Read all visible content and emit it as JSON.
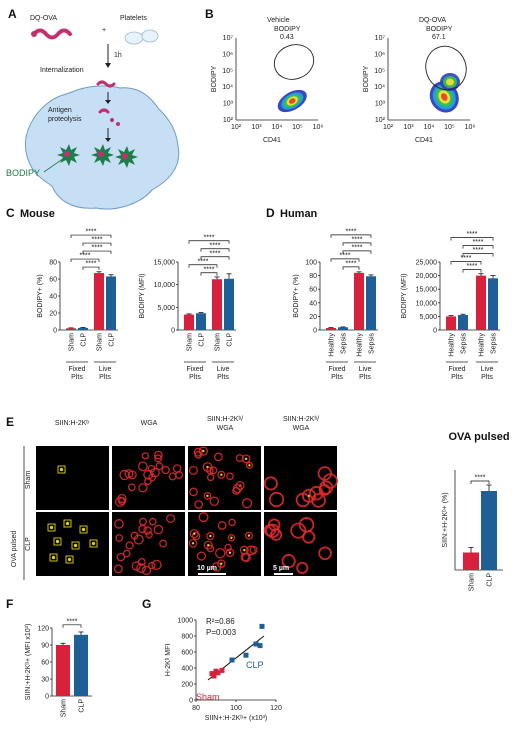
{
  "colors": {
    "red": "#d7213d",
    "blue": "#1f5f97",
    "green": "#1c7f4a",
    "pink": "#c2306f",
    "cell_fill": "#c7dff4",
    "confocal_red": "#e02a2a",
    "square_yellow": "#e8d60a"
  },
  "panel_a": {
    "letter": "A",
    "dqova": "DQ-OVA",
    "platelets": "Platelets",
    "plus": "+",
    "time": "1h",
    "internalization": "Internalization",
    "proteolysis_1": "Antigen",
    "proteolysis_2": "proteolysis",
    "bodipy": "BODIPY"
  },
  "panel_b": {
    "letter": "B",
    "plots": [
      {
        "title": "Vehicle",
        "gate_label": "BODIPY",
        "gate_value": "0.43",
        "ylabel": "BODIPY",
        "xlabel": "CD41"
      },
      {
        "title": "DQ-OVA",
        "gate_label": "BODIPY",
        "gate_value": "67.1",
        "ylabel": "BODIPY",
        "xlabel": "CD41"
      }
    ],
    "axis_ticks": [
      "10²",
      "10³",
      "10⁴",
      "10⁵",
      "10⁶",
      "10⁷"
    ]
  },
  "panel_c": {
    "letter": "C",
    "title": "Mouse"
  },
  "panel_d": {
    "letter": "D",
    "title": "Human"
  },
  "panel_e": {
    "letter": "E",
    "col_headers": [
      [
        "SIIN:H-2Kᵇ"
      ],
      [
        "WGA"
      ],
      [
        "SIIN:H-2Kᵇ/",
        "WGA"
      ],
      [
        "SIIN:H-2Kᵇ/",
        "WGA"
      ]
    ],
    "side_label": "OVA pulsed",
    "row_labels": [
      "Sham",
      "CLP"
    ],
    "scale_10": "10 µm",
    "scale_5": "5 µm"
  },
  "panel_f": {
    "letter": "F"
  },
  "panel_g": {
    "letter": "G",
    "r2": "R²=0.86",
    "p": "P=0.003",
    "clp_label": "CLP",
    "sham_label": "Sham"
  },
  "chart_data": [
    {
      "id": "C1",
      "type": "bar",
      "panel": "C",
      "ylabel": "BODIPY+ (%)",
      "ylim": [
        0,
        80
      ],
      "yticks": [
        "0",
        "20",
        "40",
        "60",
        "80"
      ],
      "categories": [
        "Sham",
        "CLP",
        "Sham",
        "CLP"
      ],
      "groups": [
        "Fixed Plts",
        "Live Plts"
      ],
      "values": [
        2,
        2.5,
        67,
        63
      ],
      "errors": [
        0.5,
        0.5,
        1.5,
        2.0
      ],
      "colors": [
        "red",
        "blue",
        "red",
        "blue"
      ],
      "significance": [
        "****",
        "****",
        "****",
        "****",
        "****"
      ]
    },
    {
      "id": "C2",
      "type": "bar",
      "panel": "C",
      "ylabel": "BODIPY (MFI)",
      "ylim": [
        0,
        15000
      ],
      "yticks": [
        "0",
        "5,000",
        "10,000",
        "15,000"
      ],
      "categories": [
        "Sham",
        "CLP",
        "Sham",
        "CLP"
      ],
      "groups": [
        "Fixed Plts",
        "Live Plts"
      ],
      "values": [
        3400,
        3700,
        11200,
        11300
      ],
      "errors": [
        150,
        150,
        500,
        1100
      ],
      "colors": [
        "red",
        "blue",
        "red",
        "blue"
      ],
      "significance": [
        "****",
        "****",
        "****",
        "****",
        "****"
      ]
    },
    {
      "id": "D1",
      "type": "bar",
      "panel": "D",
      "ylabel": "BODIPY+ (%)",
      "ylim": [
        0,
        100
      ],
      "yticks": [
        "0",
        "20",
        "40",
        "60",
        "80",
        "100"
      ],
      "categories": [
        "Healthy",
        "Sepsis",
        "Healthy",
        "Sepsis"
      ],
      "groups": [
        "Fixed Plts",
        "Live Plts"
      ],
      "values": [
        3,
        4,
        84,
        79
      ],
      "errors": [
        0.5,
        0.5,
        1.5,
        2.0
      ],
      "colors": [
        "red",
        "blue",
        "red",
        "blue"
      ],
      "significance": [
        "****",
        "****",
        "****",
        "****",
        "****"
      ]
    },
    {
      "id": "D2",
      "type": "bar",
      "panel": "D",
      "ylabel": "BODIPY (MFI)",
      "ylim": [
        0,
        25000
      ],
      "yticks": [
        "0",
        "5,000",
        "10,000",
        "15,000",
        "20,000",
        "25,000"
      ],
      "categories": [
        "Healthy",
        "Sepsis",
        "Healthy",
        "Sepsis"
      ],
      "groups": [
        "Fixed Plts",
        "Live Plts"
      ],
      "values": [
        5000,
        5500,
        20000,
        19000
      ],
      "errors": [
        300,
        300,
        700,
        1000
      ],
      "colors": [
        "red",
        "blue",
        "red",
        "blue"
      ],
      "significance": [
        "****",
        "****",
        "****",
        "****",
        "****"
      ]
    },
    {
      "id": "E",
      "type": "bar",
      "panel": "E",
      "title": "OVA pulsed",
      "ylabel": "SIIN:+H-2Kᵇ+ (%)",
      "ylim": [
        0,
        20
      ],
      "yticks": [],
      "categories": [
        "Sham",
        "CLP"
      ],
      "values": [
        3.5,
        15.8
      ],
      "errors": [
        1.0,
        1.2
      ],
      "colors": [
        "red",
        "blue"
      ],
      "significance": [
        "****"
      ]
    },
    {
      "id": "F",
      "type": "bar",
      "panel": "F",
      "ylabel": "SIIN:+H-2Kᵇ+ (MFI x10³)",
      "ylim": [
        0,
        120
      ],
      "yticks": [
        "0",
        "30",
        "60",
        "90",
        "120"
      ],
      "categories": [
        "Sham",
        "CLP"
      ],
      "values": [
        90,
        108
      ],
      "errors": [
        3,
        5
      ],
      "colors": [
        "red",
        "blue"
      ],
      "significance": [
        "****"
      ]
    },
    {
      "id": "G",
      "type": "scatter",
      "panel": "G",
      "xlabel": "SIIN+:H-2Kᵇ+ (x10³)",
      "ylabel": "H-2Kᵇ MFI",
      "xlim": [
        80,
        120
      ],
      "ylim": [
        0,
        1000
      ],
      "xticks": [
        "80",
        "100",
        "120"
      ],
      "yticks": [
        "0",
        "200",
        "400",
        "600",
        "800",
        "1000"
      ],
      "series": [
        {
          "name": "Sham",
          "color": "red",
          "x": [
            88,
            89,
            90,
            91,
            93
          ],
          "y": [
            330,
            300,
            360,
            340,
            370
          ]
        },
        {
          "name": "CLP",
          "color": "blue",
          "x": [
            98,
            105,
            110,
            112,
            113
          ],
          "y": [
            500,
            560,
            700,
            680,
            920
          ]
        }
      ],
      "fit": {
        "x": [
          86,
          114
        ],
        "y": [
          250,
          800
        ]
      }
    }
  ]
}
